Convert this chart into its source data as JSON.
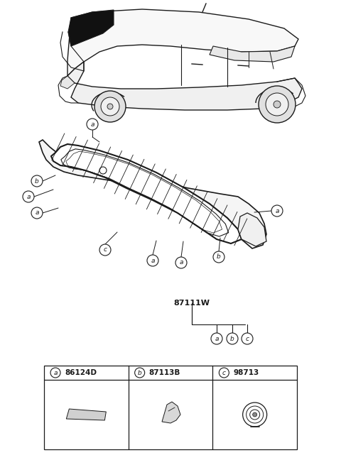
{
  "bg_color": "#ffffff",
  "line_color": "#1a1a1a",
  "fig_width": 4.8,
  "fig_height": 6.55,
  "dpi": 100,
  "part_code_main": "87111W",
  "part_labels": [
    "a",
    "b",
    "c"
  ],
  "part_numbers": [
    "86124D",
    "87113B",
    "98713"
  ]
}
